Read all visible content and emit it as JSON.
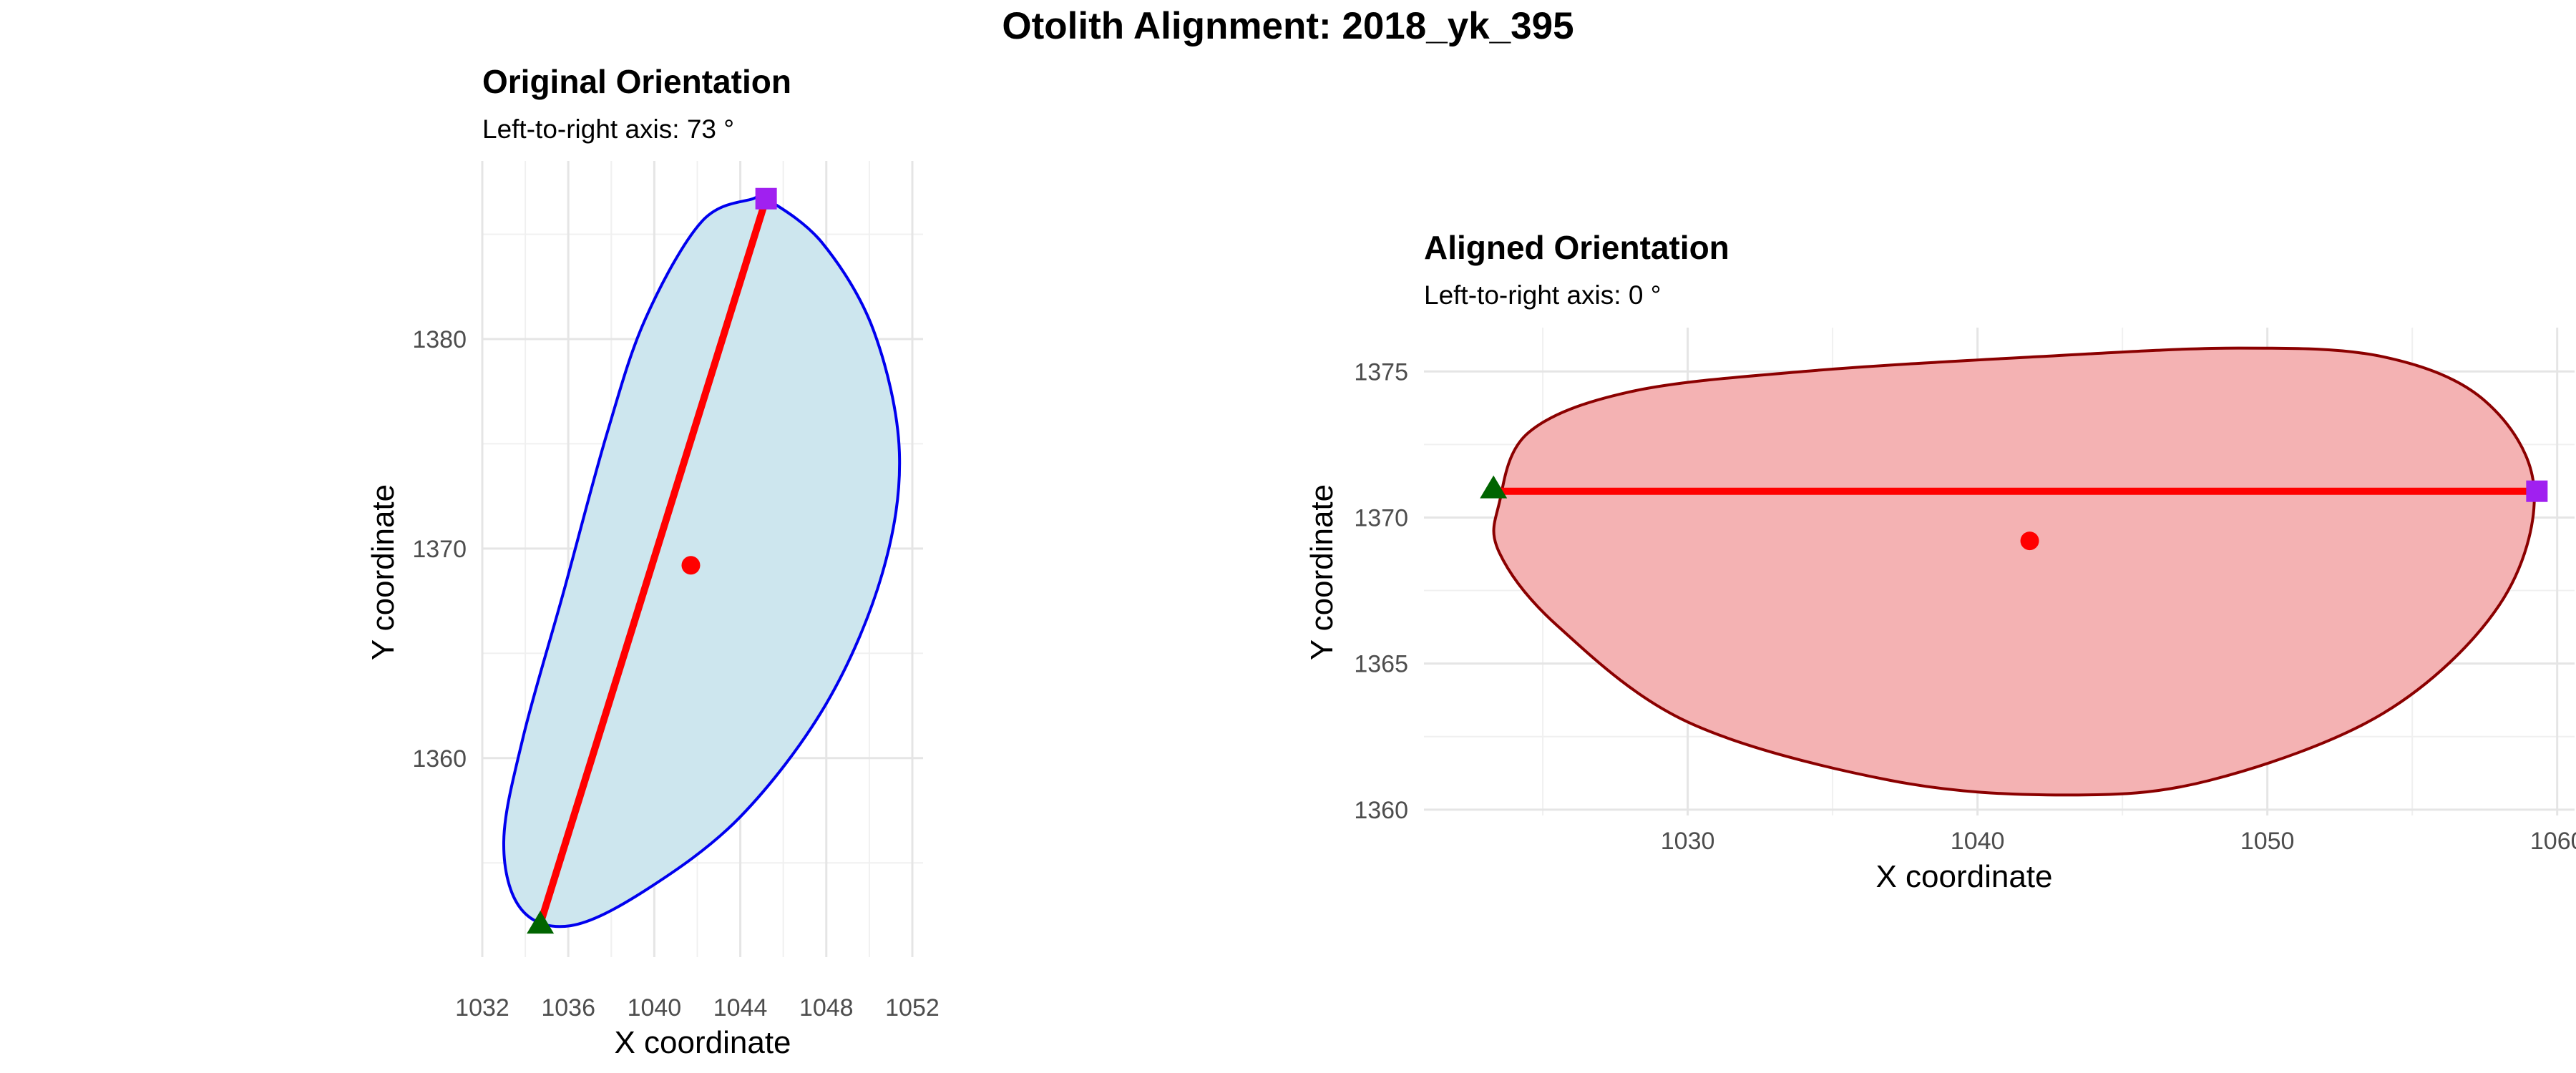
{
  "figure": {
    "title": "Otolith Alignment: 2018_yk_395"
  },
  "chart_data": [
    {
      "type": "scatter",
      "title": "Original Orientation",
      "subtitle": "Left-to-right axis: 73 °",
      "xlabel": "X coordinate",
      "ylabel": "Y coordinate",
      "xlim": [
        1032,
        1052.5
      ],
      "ylim": [
        1350.5,
        1388.5
      ],
      "xticks": [
        1032,
        1036,
        1040,
        1044,
        1048,
        1052
      ],
      "yticks": [
        1360,
        1370,
        1380
      ],
      "xtick_labels": [
        "1032",
        "1036",
        "1040",
        "1044",
        "1048",
        "1052"
      ],
      "ytick_labels": [
        "1360",
        "1370",
        "1380"
      ],
      "grid": true,
      "outline": {
        "fill": "#cde6ee",
        "stroke": "#0000ee",
        "points": [
          [
            1045.2,
            1386.7
          ],
          [
            1047.8,
            1384.6
          ],
          [
            1050.2,
            1380.4
          ],
          [
            1051.4,
            1374.6
          ],
          [
            1050.6,
            1368.8
          ],
          [
            1048.0,
            1362.6
          ],
          [
            1044.0,
            1357.2
          ],
          [
            1039.6,
            1353.7
          ],
          [
            1036.1,
            1352.0
          ],
          [
            1033.8,
            1352.8
          ],
          [
            1033.0,
            1356.0
          ],
          [
            1033.9,
            1361.0
          ],
          [
            1035.8,
            1368.0
          ],
          [
            1037.8,
            1375.5
          ],
          [
            1039.6,
            1381.0
          ],
          [
            1042.2,
            1385.6
          ],
          [
            1044.6,
            1386.7
          ]
        ]
      },
      "axis_line": {
        "color": "#ff0000",
        "points": [
          [
            1034.7,
            1352.1
          ],
          [
            1045.2,
            1386.7
          ]
        ]
      },
      "centroid": {
        "color": "#ff0000",
        "point": [
          1041.7,
          1369.2
        ]
      },
      "left_point": {
        "color": "#006400",
        "marker": "triangle",
        "point": [
          1034.7,
          1352.1
        ]
      },
      "right_point": {
        "color": "#a020f0",
        "marker": "square",
        "point": [
          1045.2,
          1386.7
        ]
      }
    },
    {
      "type": "scatter",
      "title": "Aligned Orientation",
      "subtitle": "Left-to-right axis: 0 °",
      "xlabel": "X coordinate",
      "ylabel": "Y coordinate",
      "xlim": [
        1020.9,
        1060.6
      ],
      "ylim": [
        1359.8,
        1376.5
      ],
      "xticks": [
        1030,
        1040,
        1050,
        1060
      ],
      "yticks": [
        1360,
        1365,
        1370,
        1375
      ],
      "xtick_labels": [
        "1030",
        "1040",
        "1050",
        "1060"
      ],
      "ytick_labels": [
        "1360",
        "1365",
        "1370",
        "1375"
      ],
      "grid": true,
      "outline": {
        "fill": "#f4b2b3",
        "stroke": "#8b0000",
        "points": [
          [
            1023.5,
            1370.5
          ],
          [
            1024.5,
            1372.9
          ],
          [
            1028.0,
            1374.3
          ],
          [
            1034.0,
            1375.0
          ],
          [
            1042.0,
            1375.5
          ],
          [
            1049.0,
            1375.8
          ],
          [
            1054.0,
            1375.5
          ],
          [
            1057.5,
            1374.0
          ],
          [
            1059.2,
            1371.0
          ],
          [
            1058.0,
            1367.0
          ],
          [
            1054.0,
            1363.3
          ],
          [
            1048.0,
            1361.0
          ],
          [
            1043.0,
            1360.5
          ],
          [
            1037.0,
            1361.0
          ],
          [
            1030.0,
            1363.0
          ],
          [
            1025.5,
            1366.3
          ],
          [
            1023.5,
            1368.8
          ]
        ]
      },
      "axis_line": {
        "color": "#ff0000",
        "points": [
          [
            1023.3,
            1370.9
          ],
          [
            1059.3,
            1370.9
          ]
        ]
      },
      "centroid": {
        "color": "#ff0000",
        "point": [
          1041.8,
          1369.2
        ]
      },
      "left_point": {
        "color": "#006400",
        "marker": "triangle",
        "point": [
          1023.3,
          1371.0
        ]
      },
      "right_point": {
        "color": "#a020f0",
        "marker": "square",
        "point": [
          1059.3,
          1370.9
        ]
      }
    }
  ]
}
